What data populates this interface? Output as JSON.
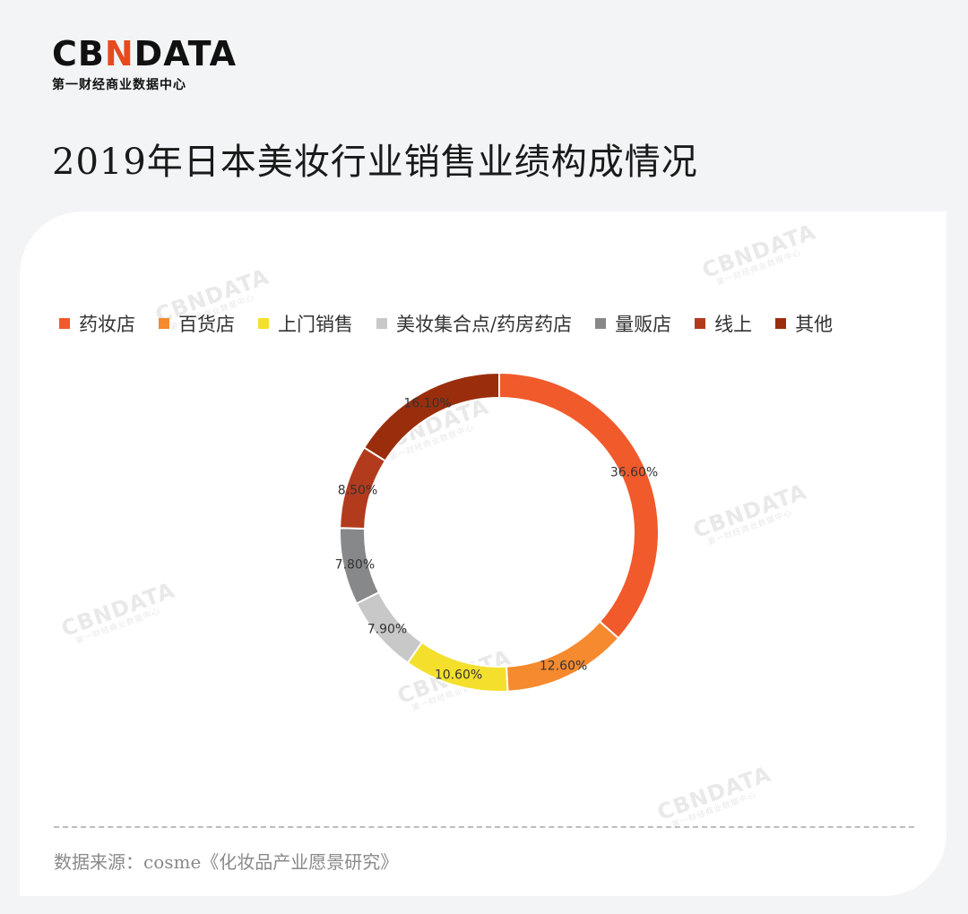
{
  "header": {
    "logo_text_1": "CB",
    "logo_text_accent": "N",
    "logo_text_2": "DATA",
    "logo_subtitle": "第一财经商业数据中心",
    "title": "2019年日本美妆行业销售业绩构成情况"
  },
  "watermark": {
    "text": "CBNDATA",
    "sub": "第一财经商业数据中心"
  },
  "legend": [
    {
      "label": "药妆店",
      "color": "#f15a2b"
    },
    {
      "label": "百货店",
      "color": "#f68a2e"
    },
    {
      "label": "上门销售",
      "color": "#f4e02c"
    },
    {
      "label": "美妆集合点/药房药店",
      "color": "#c8c8c8"
    },
    {
      "label": "量贩店",
      "color": "#86888a"
    },
    {
      "label": "线上",
      "color": "#b23b1e"
    },
    {
      "label": "其他",
      "color": "#9a2e0c"
    }
  ],
  "chart_data": {
    "type": "pie",
    "donut": true,
    "categories": [
      "药妆店",
      "百货店",
      "上门销售",
      "美妆集合点/药房药店",
      "量贩店",
      "线上",
      "其他"
    ],
    "values": [
      36.6,
      12.6,
      10.6,
      7.9,
      7.8,
      8.5,
      16.1
    ],
    "labels": [
      "36.60%",
      "12.60%",
      "10.60%",
      "7.90%",
      "7.80%",
      "8.50%",
      "16.10%"
    ],
    "colors": [
      "#f15a2b",
      "#f68a2e",
      "#f4e02c",
      "#c8c8c8",
      "#86888a",
      "#b23b1e",
      "#9a2e0c"
    ],
    "legend_position": "top"
  },
  "footer": {
    "source": "数据来源：cosme《化妆品产业愿景研究》"
  }
}
